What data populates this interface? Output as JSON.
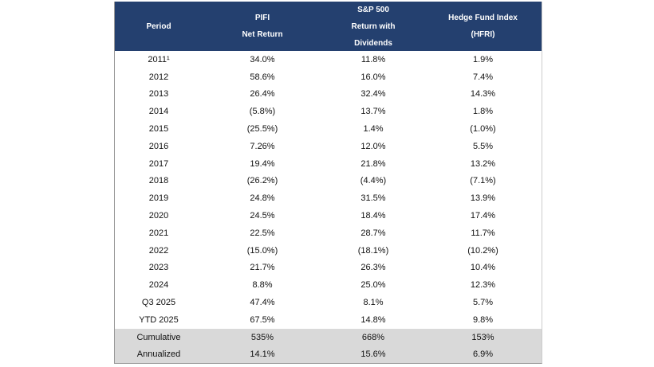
{
  "table": {
    "header": [
      [
        "Period"
      ],
      [
        "PIFI",
        "Net Return"
      ],
      [
        "S&P 500",
        "Return with",
        "Dividends"
      ],
      [
        "Hedge Fund Index",
        "(HFRI)"
      ]
    ],
    "rows": [
      [
        "2011¹",
        "34.0%",
        "11.8%",
        "1.9%"
      ],
      [
        "2012",
        "58.6%",
        "16.0%",
        "7.4%"
      ],
      [
        "2013",
        "26.4%",
        "32.4%",
        "14.3%"
      ],
      [
        "2014",
        "(5.8%)",
        "13.7%",
        "1.8%"
      ],
      [
        "2015",
        "(25.5%)",
        "1.4%",
        "(1.0%)"
      ],
      [
        "2016",
        "7.26%",
        "12.0%",
        "5.5%"
      ],
      [
        "2017",
        "19.4%",
        "21.8%",
        "13.2%"
      ],
      [
        "2018",
        "(26.2%)",
        "(4.4%)",
        "(7.1%)"
      ],
      [
        "2019",
        "24.8%",
        "31.5%",
        "13.9%"
      ],
      [
        "2020",
        "24.5%",
        "18.4%",
        "17.4%"
      ],
      [
        "2021",
        "22.5%",
        "28.7%",
        "11.7%"
      ],
      [
        "2022",
        "(15.0%)",
        "(18.1%)",
        "(10.2%)"
      ],
      [
        "2023",
        "21.7%",
        "26.3%",
        "10.4%"
      ],
      [
        "2024",
        "8.8%",
        "25.0%",
        "12.3%"
      ],
      [
        "Q3 2025",
        "47.4%",
        "8.1%",
        "5.7%"
      ],
      [
        "YTD 2025",
        "67.5%",
        "14.8%",
        "9.8%"
      ]
    ],
    "summary_rows": [
      [
        "Cumulative",
        "535%",
        "668%",
        "153%"
      ],
      [
        "Annualized",
        "14.1%",
        "15.6%",
        "6.9%"
      ]
    ]
  }
}
